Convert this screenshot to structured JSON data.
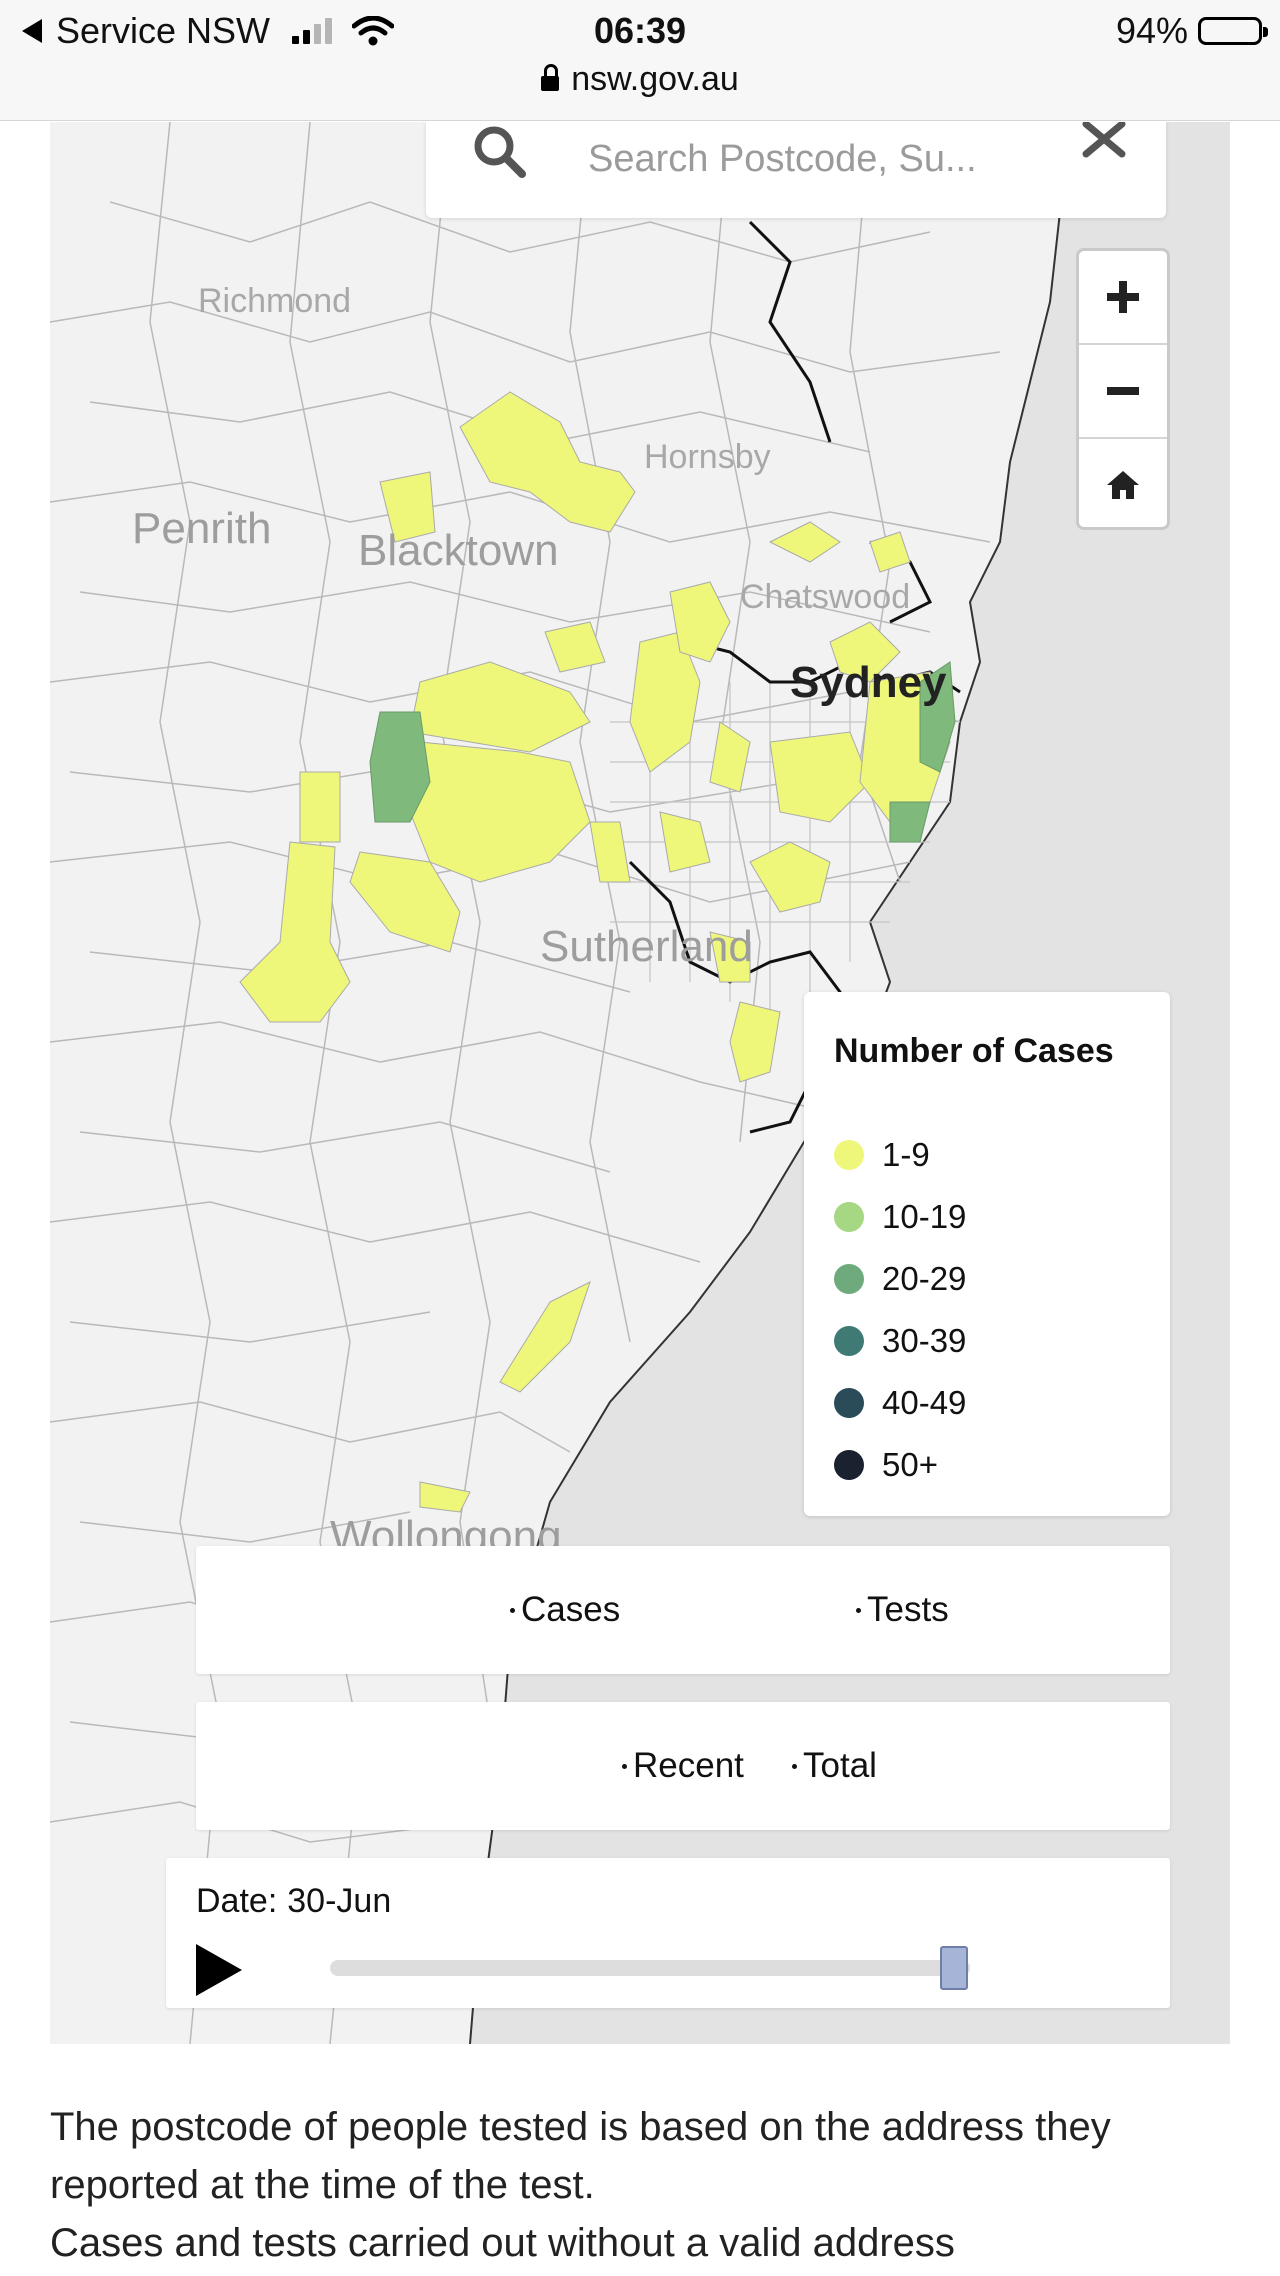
{
  "status_bar": {
    "back_app": "Service NSW",
    "time": "06:39",
    "url": "nsw.gov.au",
    "battery": "94%",
    "battery_level": 0.94
  },
  "map": {
    "search": {
      "placeholder": "Search Postcode, Su..."
    },
    "place_labels": [
      "Richmond",
      "Hornsby",
      "Penrith",
      "Blacktown",
      "Chatswood",
      "Sydney",
      "Sutherland",
      "Wollongong"
    ],
    "legend": {
      "title": "Number of Cases",
      "items": [
        {
          "label": "1-9",
          "color": "#eef77a"
        },
        {
          "label": "10-19",
          "color": "#a6d783"
        },
        {
          "label": "20-29",
          "color": "#6eaa7c"
        },
        {
          "label": "30-39",
          "color": "#3f7b74"
        },
        {
          "label": "40-49",
          "color": "#2a4b58"
        },
        {
          "label": "50+",
          "color": "#1a2230"
        }
      ]
    },
    "mode_toggle": {
      "cases": "Cases",
      "tests": "Tests"
    },
    "period_toggle": {
      "recent": "Recent",
      "total": "Total"
    },
    "date": {
      "label": "Date:",
      "value": "30-Jun",
      "slider_position": 0.975
    }
  },
  "description": {
    "line1": "The postcode of people tested is based on the address they reported at the time of the test.",
    "line2": " Cases and tests carried out without a valid address"
  },
  "colors": {
    "zone_yellow": "#eef77a",
    "zone_green": "#7fb97c",
    "sea": "#e3e3e3",
    "land": "#f2f2f2"
  }
}
